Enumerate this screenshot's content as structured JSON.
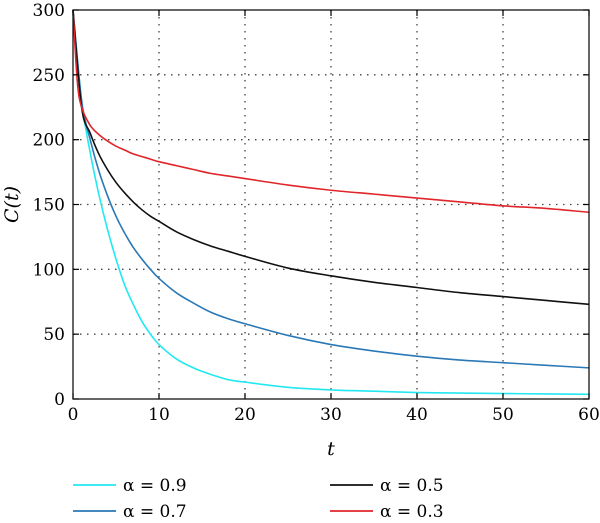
{
  "chart_data": {
    "type": "line",
    "title": "",
    "xlabel": "t",
    "ylabel": "C(t)",
    "xlim": [
      0,
      60
    ],
    "ylim": [
      0,
      300
    ],
    "xticks": [
      0,
      10,
      20,
      30,
      40,
      50,
      60
    ],
    "yticks": [
      0,
      50,
      100,
      150,
      200,
      250,
      300
    ],
    "x_tick_labels": [
      "0",
      "10",
      "20",
      "30",
      "40",
      "50",
      "60"
    ],
    "y_tick_labels": [
      "0",
      "50",
      "100",
      "150",
      "200",
      "250",
      "300"
    ],
    "grid": true,
    "legend_position": "bottom",
    "series": [
      {
        "name": "α = 0.9",
        "color": "#22e8f2",
        "x": [
          0,
          1,
          2,
          3,
          4,
          5,
          6,
          7,
          8,
          9,
          10,
          12,
          14,
          16,
          18,
          20,
          25,
          30,
          35,
          40,
          45,
          50,
          55,
          60
        ],
        "y": [
          300,
          230,
          190,
          158,
          131,
          108,
          88,
          73,
          60,
          50,
          42,
          31,
          24,
          19,
          15,
          13,
          9,
          7,
          6,
          5,
          4.6,
          4.2,
          3.9,
          3.6
        ]
      },
      {
        "name": "α = 0.7",
        "color": "#2a78b6",
        "x": [
          0,
          1,
          2,
          3,
          4,
          5,
          6,
          7,
          8,
          9,
          10,
          12,
          14,
          16,
          18,
          20,
          25,
          30,
          35,
          40,
          45,
          50,
          55,
          60
        ],
        "y": [
          300,
          230,
          200,
          176,
          157,
          141,
          128,
          117,
          108,
          100,
          93,
          82,
          74,
          67,
          62,
          58,
          49,
          42,
          37,
          33,
          30,
          28,
          26,
          24
        ]
      },
      {
        "name": "α = 0.5",
        "color": "#111111",
        "x": [
          0,
          1,
          2,
          3,
          4,
          5,
          6,
          7,
          8,
          9,
          10,
          12,
          14,
          16,
          18,
          20,
          25,
          30,
          35,
          40,
          45,
          50,
          55,
          60
        ],
        "y": [
          300,
          225,
          205,
          189,
          177,
          167,
          159,
          152,
          146,
          141,
          137,
          129,
          123,
          118,
          114,
          110,
          101,
          95,
          90,
          86,
          82,
          79,
          76,
          73
        ]
      },
      {
        "name": "α = 0.3",
        "color": "#e0262b",
        "x": [
          0,
          0.5,
          1,
          2,
          3,
          4,
          5,
          6,
          7,
          8,
          9,
          10,
          12,
          14,
          16,
          18,
          20,
          25,
          30,
          35,
          40,
          45,
          50,
          55,
          60
        ],
        "y": [
          300,
          245,
          225,
          211,
          204,
          199,
          195,
          192,
          189,
          187,
          185,
          183,
          180,
          177,
          174,
          172,
          170,
          165,
          161,
          158,
          155,
          152,
          149,
          147,
          144
        ]
      }
    ]
  }
}
